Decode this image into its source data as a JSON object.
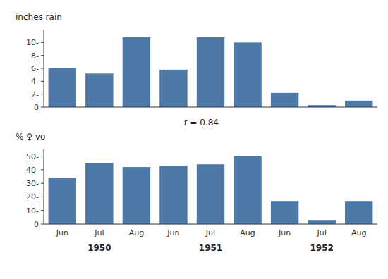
{
  "chart_data": [
    {
      "type": "bar",
      "ylabel": "inches rain",
      "annotations": [
        "r = 0.84"
      ],
      "categories": [
        null,
        null,
        null,
        null,
        null,
        null,
        null,
        null,
        null
      ],
      "values": [
        6.1,
        5.2,
        10.8,
        5.8,
        10.8,
        10.0,
        2.2,
        0.3,
        1.0
      ],
      "color": "#4e79a7",
      "ylim": [
        0,
        12
      ],
      "yticks": [
        0,
        {
          "value": 2,
          "label": "2-"
        },
        {
          "value": 4,
          "label": "4-"
        },
        {
          "value": 6,
          "label": "6-"
        },
        {
          "value": 8,
          "label": "8-"
        },
        {
          "value": 10,
          "label": "10-"
        }
      ],
      "grid": false
    },
    {
      "type": "bar",
      "ylabel": "% ♀ vo",
      "annotations": [
        "1950",
        "1951",
        "1952"
      ],
      "categories": [
        "Jun",
        "Jul",
        "Aug",
        "Jun",
        "Jul",
        "Aug",
        "Jun",
        "Jul",
        "Aug"
      ],
      "values": [
        34,
        45,
        42,
        43,
        44,
        50,
        17,
        3,
        17
      ],
      "color": "#4e79a7",
      "ylim": [
        0,
        55
      ],
      "yticks": [
        0,
        {
          "value": 10,
          "label": "10-"
        },
        {
          "value": 20,
          "label": "20-"
        },
        {
          "value": 30,
          "label": "30-"
        },
        {
          "value": 40,
          "label": "40-"
        },
        {
          "value": 50,
          "label": "50-"
        }
      ],
      "grid": false
    }
  ]
}
